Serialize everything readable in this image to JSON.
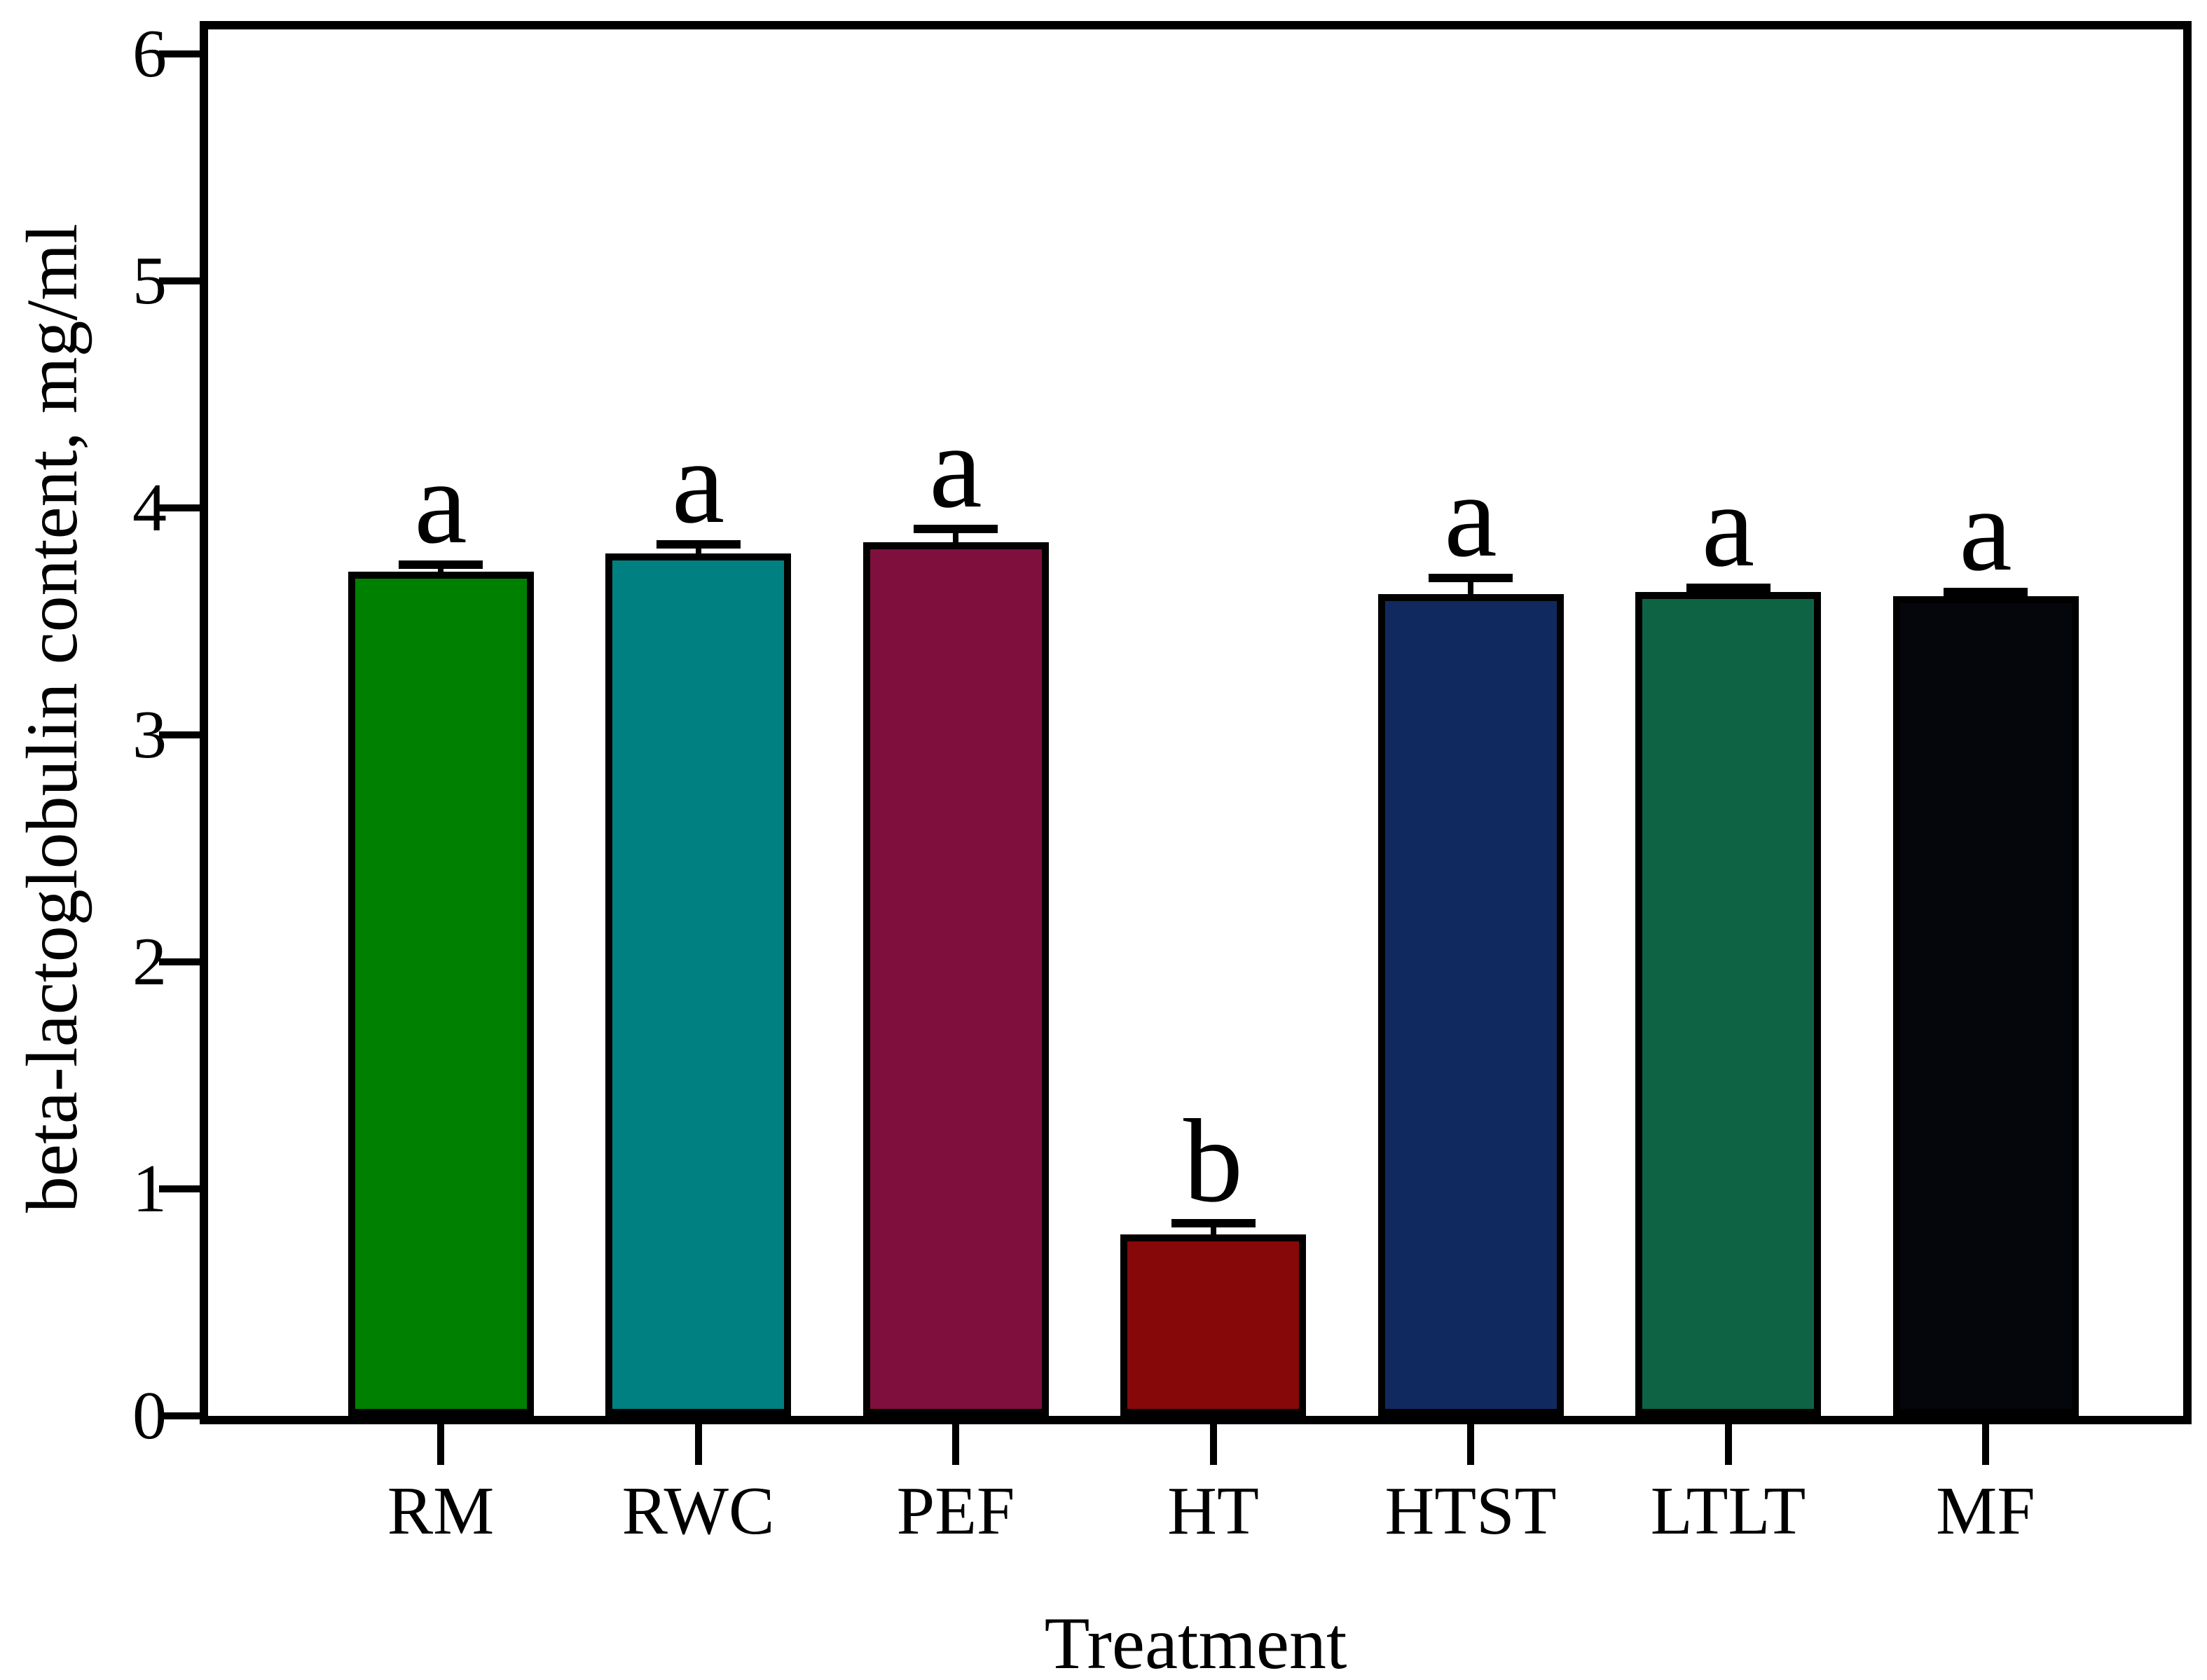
{
  "chart_data": {
    "type": "bar",
    "title": "",
    "xlabel": "Treatment",
    "ylabel": "beta-lactoglobulin content, mg/ml",
    "categories": [
      "RM",
      "RWC",
      "PEF",
      "HT",
      "HTST",
      "LTLT",
      "MF"
    ],
    "values": [
      3.72,
      3.8,
      3.85,
      0.8,
      3.62,
      3.63,
      3.61
    ],
    "errors": [
      0.03,
      0.04,
      0.06,
      0.05,
      0.07,
      0.02,
      0.02
    ],
    "significance_letters": [
      "a",
      "a",
      "a",
      "b",
      "a",
      "a",
      "a"
    ],
    "bar_colors": [
      "#008000",
      "#008080",
      "#7F103E",
      "#870808",
      "#102A60",
      "#0E6345",
      "#05050C"
    ],
    "bar_edge_color": "#000000",
    "error_bar_color": "#000000",
    "axis_color": "#000000",
    "background_color": "#FFFFFF",
    "yticks": [
      "0",
      "1",
      "2",
      "3",
      "4",
      "5",
      "6"
    ],
    "ylim": [
      0,
      6.15
    ],
    "grid": false,
    "legend": "none"
  }
}
